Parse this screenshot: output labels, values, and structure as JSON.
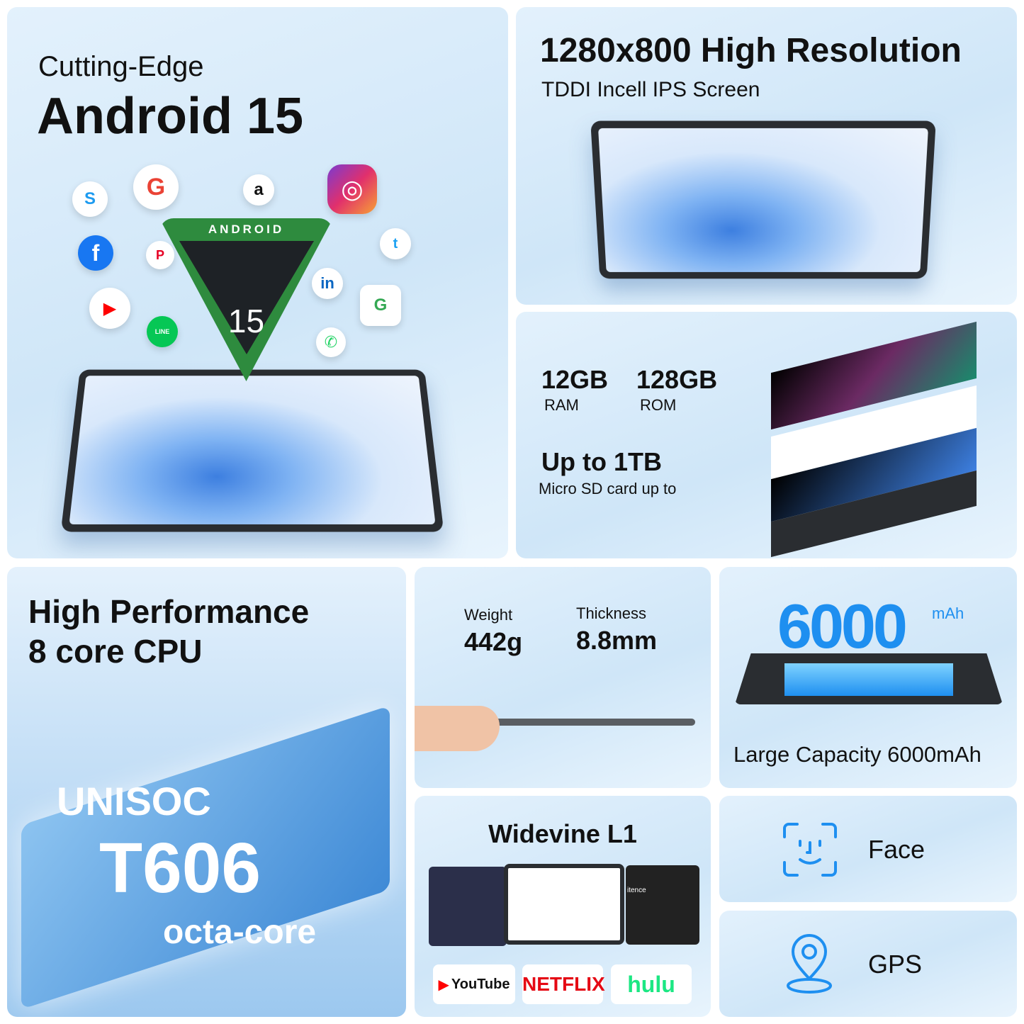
{
  "android": {
    "subtitle": "Cutting-Edge",
    "title": "Android 15",
    "badge": "ANDROID",
    "badge_number": "15",
    "apps": [
      {
        "name": "skype-icon",
        "glyph": "S",
        "color": "#1d9bf0"
      },
      {
        "name": "google-icon",
        "glyph": "G",
        "color": "#ea4335"
      },
      {
        "name": "amazon-icon",
        "glyph": "a",
        "color": "#111111"
      },
      {
        "name": "instagram-icon",
        "glyph": "◎",
        "color": "#e1306c"
      },
      {
        "name": "facebook-icon",
        "glyph": "f",
        "color": "#1877f2"
      },
      {
        "name": "pinterest-icon",
        "glyph": "P",
        "color": "#e60023"
      },
      {
        "name": "twitter-icon",
        "glyph": "t",
        "color": "#1da1f2"
      },
      {
        "name": "linkedin-icon",
        "glyph": "in",
        "color": "#0a66c2"
      },
      {
        "name": "youtube-icon",
        "glyph": "▶",
        "color": "#ff0000"
      },
      {
        "name": "line-icon",
        "glyph": "LINE",
        "color": "#06c755"
      },
      {
        "name": "maps-icon",
        "glyph": "G",
        "color": "#34a853"
      },
      {
        "name": "whatsapp-icon",
        "glyph": "✆",
        "color": "#25d366"
      }
    ]
  },
  "display": {
    "title": "1280x800 High Resolution",
    "subtitle": "TDDI Incell IPS Screen"
  },
  "storage": {
    "ram_value": "12GB",
    "ram_label": "RAM",
    "rom_value": "128GB",
    "rom_label": "ROM",
    "expand_value": "Up to 1TB",
    "expand_label": "Micro SD card up to"
  },
  "cpu": {
    "title_line1": "High Performance",
    "title_line2": "8 core CPU",
    "chip_brand": "UNISOC",
    "chip_model": "T606",
    "chip_desc": "octa-core"
  },
  "weight": {
    "weight_label": "Weight",
    "weight_value": "442g",
    "thickness_label": "Thickness",
    "thickness_value": "8.8mm"
  },
  "battery": {
    "value": "6000",
    "unit": "mAh",
    "caption": "Large Capacity 6000mAh"
  },
  "widevine": {
    "title": "Widevine L1",
    "logos": [
      {
        "text": "YouTube",
        "color": "#111111"
      },
      {
        "text": "NETFLIX",
        "color": "#e50914"
      },
      {
        "text": "hulu",
        "color": "#1ce783"
      }
    ],
    "screen_text": "itence"
  },
  "face": {
    "label": "Face"
  },
  "gps": {
    "label": "GPS"
  },
  "colors": {
    "accent": "#1e8ff0",
    "panel": "#dcedfb"
  }
}
